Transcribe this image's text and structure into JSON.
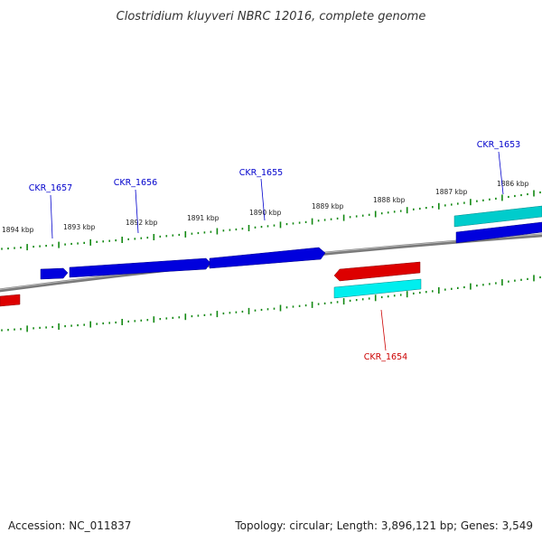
{
  "title": "Clostridium kluyveri NBRC 12016, complete genome",
  "footer": {
    "accession": "Accession: NC_011837",
    "summary": "Topology: circular; Length: 3,896,121 bp; Genes: 3,549"
  },
  "scale_labels": [
    "1894 kbp",
    "1893 kbp",
    "1892 kbp",
    "1891 kbp",
    "1890 kbp",
    "1889 kbp",
    "1888 kbp",
    "1887 kbp",
    "1886 kbp"
  ],
  "genes": [
    {
      "name": "CKR_1657",
      "strand": "forward",
      "color": "#0000dd"
    },
    {
      "name": "CKR_1656",
      "strand": "forward",
      "color": "#0000dd"
    },
    {
      "name": "CKR_1655",
      "strand": "forward",
      "color": "#0000dd"
    },
    {
      "name": "CKR_1654",
      "strand": "reverse",
      "color": "#dd0000"
    },
    {
      "name": "CKR_1653",
      "strand": "forward",
      "color": "#0000dd"
    }
  ],
  "colors": {
    "forward_gene": "#0000dd",
    "reverse_gene": "#dd0000",
    "rna_gene": "#00cccc",
    "backbone": "#808080",
    "ticks": "#118811",
    "forward_label": "#0000cc",
    "reverse_label": "#cc0000"
  }
}
